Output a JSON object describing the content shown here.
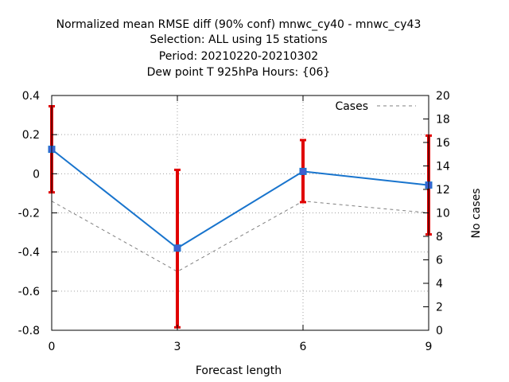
{
  "chart_data": {
    "type": "line",
    "title_lines": [
      "Normalized mean RMSE diff (90% conf) mnwc_cy40 - mnwc_cy43",
      "Selection: ALL using    15 stations",
      "Period: 20210220-20210302",
      "Dew point T 925hPa   Hours: {06}"
    ],
    "xlabel": "Forecast length",
    "ylabel": "",
    "y2label": "No cases",
    "x": [
      0,
      3,
      6,
      9
    ],
    "xlim": [
      0,
      9
    ],
    "xticks": [
      "0",
      "3",
      "6",
      "9"
    ],
    "ylim": [
      -0.8,
      0.4
    ],
    "yticks": [
      "-0.8",
      "-0.6",
      "-0.4",
      "-0.2",
      "0",
      "0.2",
      "0.4"
    ],
    "y2lim": [
      0,
      20
    ],
    "y2ticks": [
      "0",
      "2",
      "4",
      "6",
      "8",
      "10",
      "12",
      "14",
      "16",
      "18",
      "20"
    ],
    "grid": true,
    "legend_position": "top-right",
    "series": [
      {
        "values": [
          0.125,
          -0.38,
          0.012,
          -0.058
        ],
        "ci_low": [
          -0.095,
          -0.785,
          -0.145,
          -0.31
        ],
        "ci_high": [
          0.345,
          0.02,
          0.172,
          0.195
        ],
        "color": "#1874cd",
        "errorbar_color": "#e00000",
        "axis": "y"
      },
      {
        "name": "Cases",
        "values": [
          11,
          5,
          11,
          10
        ],
        "color": "#808080",
        "dashed": true,
        "axis": "y2"
      }
    ]
  }
}
